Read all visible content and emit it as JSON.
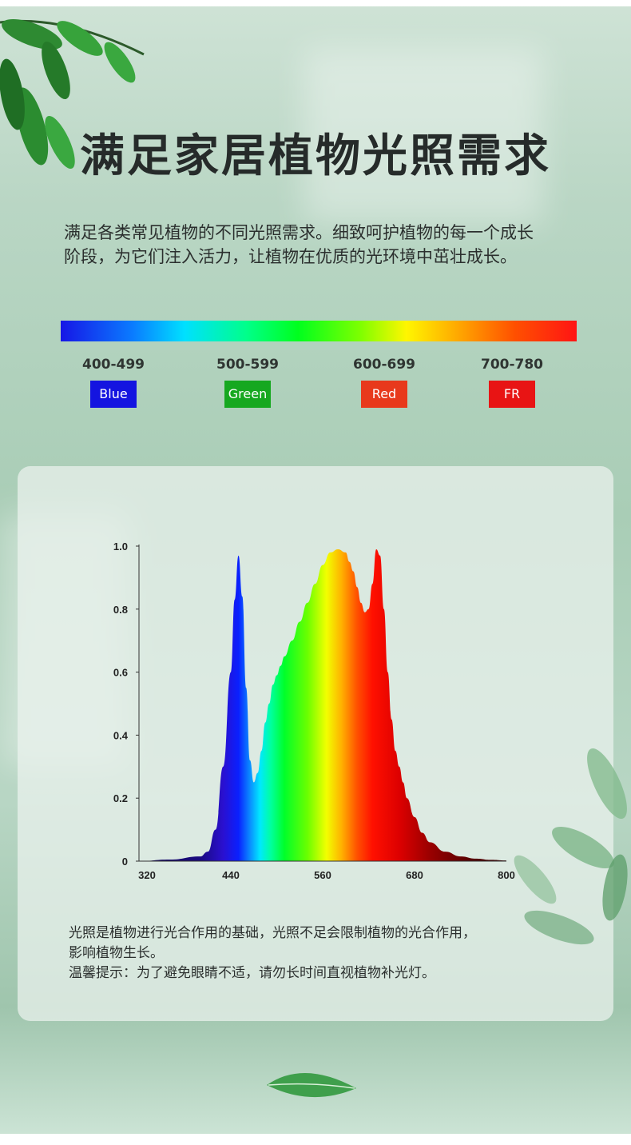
{
  "headline": "满足家居植物光照需求",
  "intro": {
    "line1": "满足各类常见植物的不同光照需求。细致呵护植物的每一个成长",
    "line2": "阶段，为它们注入活力，让植物在优质的光环境中茁壮成长。"
  },
  "bands": [
    {
      "range": "400-499",
      "label": "Blue",
      "color": "#1414e0"
    },
    {
      "range": "500-599",
      "label": "Green",
      "color": "#16a820"
    },
    {
      "range": "600-699",
      "label": "Red",
      "color": "#e8391c"
    },
    {
      "range": "700-780",
      "label": "FR",
      "color": "#e81414"
    }
  ],
  "chart_data": {
    "type": "area",
    "title": "",
    "xlabel": "",
    "ylabel": "",
    "x_ticks": [
      320,
      440,
      560,
      680,
      800
    ],
    "y_ticks": [
      0,
      0.2,
      0.4,
      0.6,
      0.8,
      1.0
    ],
    "y_tick_labels": [
      "0",
      "0.2",
      "0.4",
      "0.6",
      "0.8",
      "1.0"
    ],
    "xlim": [
      320,
      800
    ],
    "ylim": [
      0,
      1.0
    ],
    "fill": "wavelength-color gradient",
    "series": [
      {
        "x": [
          320,
          360,
          400,
          410,
          420,
          430,
          440,
          445,
          450,
          455,
          460,
          465,
          470,
          475,
          480,
          485,
          490,
          495,
          500,
          505,
          510,
          520,
          530,
          540,
          550,
          560,
          570,
          580,
          590,
          595,
          600,
          605,
          610,
          615,
          620,
          625,
          630,
          635,
          640,
          645,
          650,
          655,
          660,
          665,
          670,
          680,
          690,
          700,
          720,
          740,
          760,
          780,
          800
        ],
        "y": [
          0,
          0.005,
          0.015,
          0.03,
          0.1,
          0.3,
          0.6,
          0.83,
          0.97,
          0.84,
          0.55,
          0.32,
          0.25,
          0.28,
          0.35,
          0.44,
          0.5,
          0.56,
          0.59,
          0.62,
          0.65,
          0.7,
          0.76,
          0.82,
          0.88,
          0.94,
          0.98,
          0.99,
          0.98,
          0.95,
          0.92,
          0.87,
          0.82,
          0.79,
          0.8,
          0.88,
          0.99,
          0.97,
          0.8,
          0.6,
          0.45,
          0.35,
          0.3,
          0.25,
          0.2,
          0.14,
          0.09,
          0.06,
          0.03,
          0.015,
          0.008,
          0.004,
          0.002
        ]
      }
    ]
  },
  "footnote": {
    "line1": "光照是植物进行光合作用的基础，光照不足会限制植物的光合作用，",
    "line2": "影响植物生长。",
    "line3": "温馨提示：为了避免眼睛不适，请勿长时间直视植物补光灯。"
  },
  "icons": [
    "leaf-branch-icon",
    "leaf-cluster-icon",
    "single-leaf-icon"
  ]
}
